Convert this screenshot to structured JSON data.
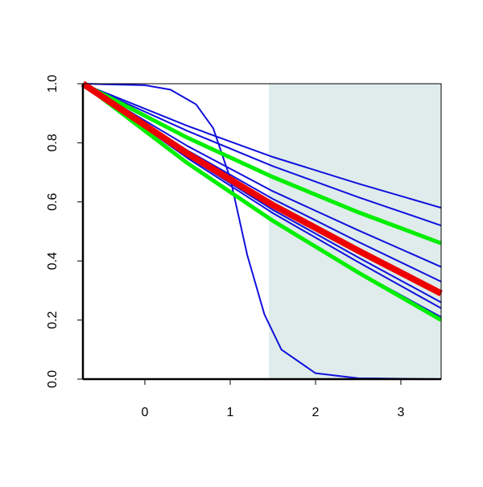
{
  "chart_data": {
    "type": "line",
    "x": [
      -0.726,
      0.5,
      1.5,
      2.5,
      3.472
    ],
    "xlim": [
      -0.726,
      3.472
    ],
    "ylim": [
      0,
      1
    ],
    "xticks": [
      0,
      1,
      2,
      3
    ],
    "yticks": [
      {
        "value": 0,
        "label": "0.0"
      },
      {
        "value": 0.2,
        "label": "0.2"
      },
      {
        "value": 0.4,
        "label": "0.4"
      },
      {
        "value": 0.6,
        "label": "0.6"
      },
      {
        "value": 0.8,
        "label": "0.8"
      },
      {
        "value": 1,
        "label": "1.0"
      }
    ],
    "shade_x": [
      1.453,
      3.472
    ],
    "shade_color": "#dfeceb",
    "series": [
      {
        "color": "#1010dd",
        "width": 2,
        "values": [
          1,
          0.857,
          0.752,
          0.662,
          0.58
        ]
      },
      {
        "color": "#1010dd",
        "width": 2,
        "values": [
          1,
          0.84,
          0.721,
          0.616,
          0.52
        ]
      },
      {
        "color": "#1010dd",
        "width": 2,
        "values": [
          1,
          0.789,
          0.636,
          0.504,
          0.38
        ]
      },
      {
        "color": "#1010dd",
        "width": 2,
        "values": [
          1,
          0.774,
          0.61,
          0.465,
          0.33
        ]
      },
      {
        "color": "#1010dd",
        "width": 2,
        "values": [
          1,
          0.754,
          0.573,
          0.412,
          0.26
        ]
      },
      {
        "color": "#1010dd",
        "width": 2,
        "values": [
          1,
          0.748,
          0.562,
          0.396,
          0.24
        ]
      },
      {
        "color": "#1010dd",
        "width": 2,
        "values": [
          1,
          0.729,
          0.536,
          0.363,
          0.21
        ]
      },
      {
        "color": "#1010dd",
        "width": 2,
        "x": [
          -0.726,
          0,
          0.3,
          0.6,
          0.8,
          1.0,
          1.2,
          1.4,
          1.6,
          2.0,
          2.5,
          3.472
        ],
        "values": [
          1,
          0.995,
          0.98,
          0.93,
          0.85,
          0.68,
          0.42,
          0.22,
          0.1,
          0.02,
          0.003,
          0
        ]
      },
      {
        "color": "#00ee00",
        "width": 5,
        "values": [
          1,
          0.817,
          0.684,
          0.565,
          0.46
        ]
      },
      {
        "color": "#00ee00",
        "width": 5,
        "values": [
          1,
          0.731,
          0.536,
          0.361,
          0.2
        ]
      },
      {
        "color": "#ee0000",
        "width": 8,
        "values": [
          1,
          0.763,
          0.589,
          0.435,
          0.29
        ]
      }
    ]
  }
}
